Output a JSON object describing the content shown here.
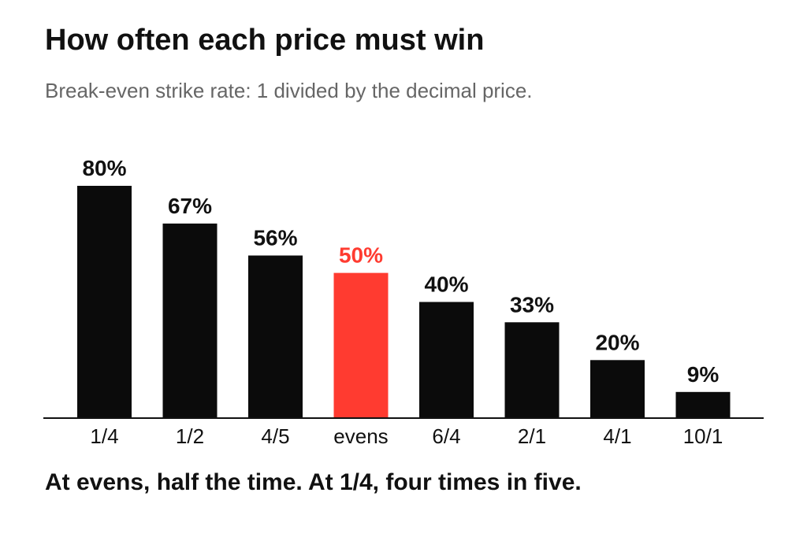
{
  "chart_data": {
    "type": "bar",
    "title": "How often each price must win",
    "subtitle": "Break-even strike rate: 1 divided by the decimal price.",
    "footnote": "At evens, half the time. At 1/4, four times in five.",
    "categories": [
      "1/4",
      "1/2",
      "4/5",
      "evens",
      "6/4",
      "2/1",
      "4/1",
      "10/1"
    ],
    "values": [
      80,
      67,
      56,
      50,
      40,
      33,
      20,
      9
    ],
    "value_labels": [
      "80%",
      "67%",
      "56%",
      "50%",
      "40%",
      "33%",
      "20%",
      "9%"
    ],
    "highlight_category": "evens",
    "ylim": [
      0,
      80
    ],
    "grid": false,
    "colors": {
      "bar": "#0b0b0b",
      "highlight": "#ff3b30",
      "text": "#111111",
      "subtitle": "#666666",
      "axis": "#111111"
    }
  }
}
